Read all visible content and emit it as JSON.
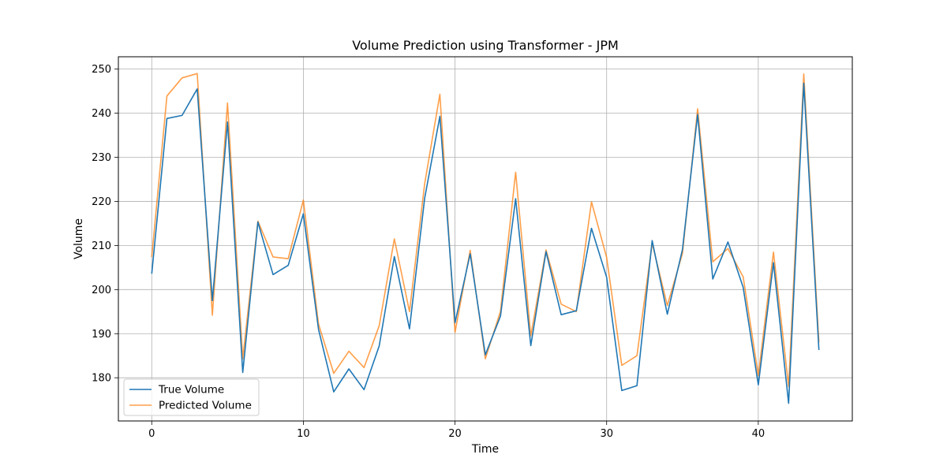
{
  "chart_data": {
    "type": "line",
    "title": "Volume Prediction using Transformer - JPM",
    "xlabel": "Time",
    "ylabel": "Volume",
    "xlim": [
      -2.2,
      46.2
    ],
    "ylim": [
      170.2,
      252.8
    ],
    "xticks": [
      0,
      10,
      20,
      30,
      40
    ],
    "yticks": [
      180,
      190,
      200,
      210,
      220,
      230,
      240,
      250
    ],
    "grid": true,
    "legend_position": "lower-left",
    "x": [
      0,
      1,
      2,
      3,
      4,
      5,
      6,
      7,
      8,
      9,
      10,
      11,
      12,
      13,
      14,
      15,
      16,
      17,
      18,
      19,
      20,
      21,
      22,
      23,
      24,
      25,
      26,
      27,
      28,
      29,
      30,
      31,
      32,
      33,
      34,
      35,
      36,
      37,
      38,
      39,
      40,
      41,
      42,
      43,
      44
    ],
    "series": [
      {
        "name": "True Volume",
        "color": "#1f77b4",
        "values": [
          203.6,
          238.8,
          239.5,
          245.5,
          197.5,
          238.0,
          181.2,
          215.3,
          203.4,
          205.5,
          217.2,
          191.0,
          176.8,
          182.0,
          177.3,
          187.2,
          207.5,
          191.1,
          220.7,
          239.3,
          192.5,
          208.1,
          185.2,
          194.0,
          220.6,
          187.3,
          208.6,
          194.3,
          195.2,
          213.9,
          202.8,
          177.1,
          178.2,
          211.1,
          194.4,
          209.1,
          239.7,
          202.4,
          210.8,
          200.5,
          178.4,
          206.1,
          174.2,
          246.8,
          186.3
        ]
      },
      {
        "name": "Predicted Volume",
        "color": "#ff7f0e",
        "values": [
          207.4,
          243.9,
          248.0,
          249.0,
          194.2,
          242.3,
          184.3,
          215.5,
          207.4,
          207.0,
          220.3,
          192.2,
          181.0,
          186.0,
          182.3,
          191.8,
          211.5,
          195.0,
          224.0,
          244.3,
          190.3,
          208.9,
          184.3,
          195.1,
          226.6,
          189.5,
          209.0,
          196.7,
          195.0,
          219.9,
          207.3,
          182.8,
          185.0,
          210.5,
          196.4,
          208.2,
          241.0,
          206.3,
          209.3,
          202.9,
          180.5,
          208.5,
          178.0,
          248.9,
          188.0
        ]
      }
    ]
  }
}
